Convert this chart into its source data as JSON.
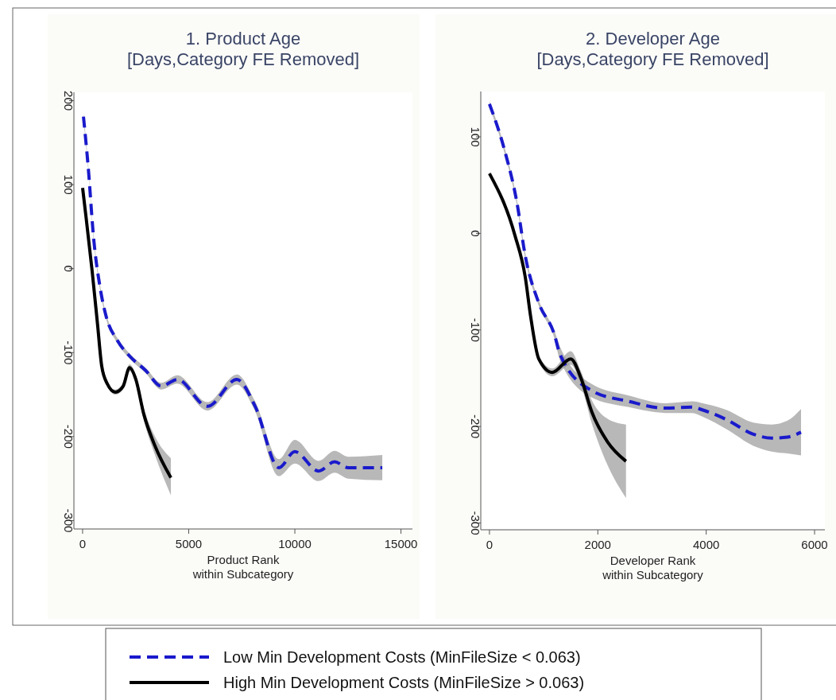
{
  "chart_data": [
    {
      "type": "line",
      "title": "1. Product Age",
      "subtitle": "[Days,Category FE Removed]",
      "xlabel": "Product Rank\nwithin Subcategory",
      "xlim": [
        -410,
        15540
      ],
      "ylim": [
        -310,
        210
      ],
      "xticks": [
        0,
        5000,
        10000,
        15000
      ],
      "yticks": [
        -300,
        -200,
        -100,
        0,
        100,
        200
      ],
      "legend": "bottom",
      "series": [
        {
          "name": "Low Min Development Costs (MinFileSize < 0.063)",
          "color": "#1a1acc",
          "line_style": "dashed",
          "x": [
            40,
            260,
            520,
            820,
            1090,
            1650,
            2210,
            2960,
            3710,
            4460,
            5880,
            7270,
            8130,
            9250,
            10000,
            11120,
            11870,
            12510,
            14120
          ],
          "values": [
            181,
            122,
            36,
            -22,
            -55,
            -86,
            -104,
            -121,
            -140,
            -132,
            -164,
            -132,
            -164,
            -237,
            -218,
            -241,
            -230,
            -237,
            -237
          ],
          "lower": [
            177,
            119,
            33,
            -25,
            -58,
            -89,
            -107,
            -124,
            -144,
            -137,
            -169,
            -138,
            -170,
            -247,
            -232,
            -253,
            -243,
            -250,
            -252
          ],
          "upper": [
            185,
            125,
            39,
            -19,
            -52,
            -83,
            -101,
            -118,
            -136,
            -127,
            -159,
            -126,
            -158,
            -227,
            -204,
            -229,
            -217,
            -224,
            -222
          ]
        },
        {
          "name": "High Min Development Costs (MinFileSize > 0.063)",
          "color": "#000000",
          "line_style": "solid",
          "x": [
            0,
            150,
            450,
            710,
            900,
            1160,
            1540,
            1910,
            2210,
            2510,
            2880,
            3410,
            4160
          ],
          "values": [
            96,
            64,
            -3,
            -68,
            -116,
            -137,
            -147,
            -140,
            -118,
            -132,
            -173,
            -211,
            -249
          ],
          "lower": [
            94,
            62,
            -5,
            -70,
            -118,
            -139,
            -150,
            -144,
            -122,
            -137,
            -180,
            -222,
            -270
          ],
          "upper": [
            98,
            66,
            -1,
            -66,
            -114,
            -135,
            -144,
            -136,
            -114,
            -127,
            -166,
            -200,
            -226
          ]
        }
      ]
    },
    {
      "type": "line",
      "title": "2. Developer Age",
      "subtitle": "[Days,Category FE Removed]",
      "xlabel": "Developer Rank\nwithin Subcategory",
      "xlim": [
        -160,
        6190
      ],
      "ylim": [
        -307,
        147
      ],
      "xticks": [
        0,
        2000,
        4000,
        6000
      ],
      "yticks": [
        -300,
        -200,
        -100,
        0,
        100
      ],
      "series": [
        {
          "color": "#1a1acc",
          "line_style": "dashed",
          "x": [
            0,
            280,
            510,
            660,
            910,
            1200,
            1300,
            1890,
            2570,
            3250,
            3740,
            3940,
            4380,
            4870,
            5210,
            5500,
            5750
          ],
          "values": [
            134,
            86,
            31,
            -23,
            -72,
            -105,
            -125,
            -163,
            -174,
            -181,
            -180,
            -183,
            -193,
            -208,
            -212,
            -211,
            -206
          ],
          "lower": [
            131,
            83,
            28,
            -26,
            -75,
            -109,
            -131,
            -170,
            -180,
            -186,
            -186,
            -190,
            -203,
            -220,
            -226,
            -228,
            -230
          ],
          "upper": [
            137,
            89,
            34,
            -20,
            -69,
            -101,
            -117,
            -156,
            -168,
            -176,
            -174,
            -176,
            -183,
            -196,
            -198,
            -194,
            -182
          ]
        },
        {
          "color": "#000000",
          "line_style": "solid",
          "x": [
            0,
            470,
            660,
            760,
            910,
            1160,
            1500,
            1690,
            1890,
            2180,
            2520
          ],
          "values": [
            62,
            -2,
            -45,
            -86,
            -130,
            -144,
            -130,
            -150,
            -185,
            -216,
            -236
          ],
          "lower": [
            60,
            -4,
            -47,
            -88,
            -133,
            -148,
            -136,
            -157,
            -197,
            -240,
            -274
          ],
          "upper": [
            64,
            0,
            -43,
            -84,
            -127,
            -140,
            -122,
            -143,
            -173,
            -192,
            -198
          ]
        }
      ]
    }
  ]
}
